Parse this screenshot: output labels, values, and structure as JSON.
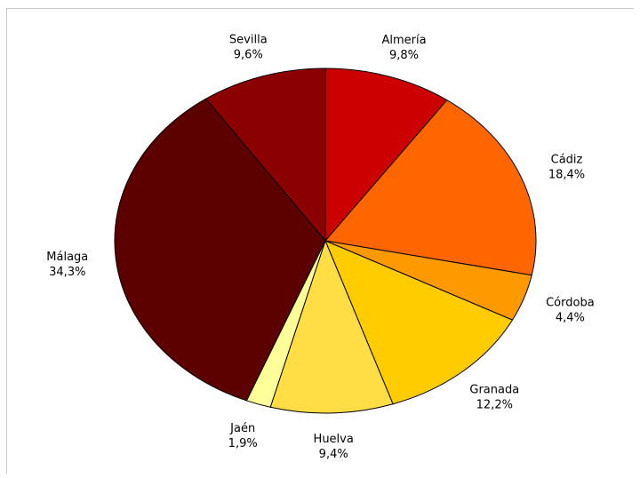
{
  "chart_data": {
    "type": "pie",
    "title": "",
    "slices": [
      {
        "name": "Almería",
        "value": 9.8,
        "label": "9,8%",
        "color": "#cc0000"
      },
      {
        "name": "Cádiz",
        "value": 18.4,
        "label": "18,4%",
        "color": "#ff6600"
      },
      {
        "name": "Córdoba",
        "value": 4.4,
        "label": "4,4%",
        "color": "#ff9900"
      },
      {
        "name": "Granada",
        "value": 12.2,
        "label": "12,2%",
        "color": "#ffcc00"
      },
      {
        "name": "Huelva",
        "value": 9.4,
        "label": "9,4%",
        "color": "#ffdd44"
      },
      {
        "name": "Jaén",
        "value": 1.9,
        "label": "1,9%",
        "color": "#ffff99"
      },
      {
        "name": "Málaga",
        "value": 34.3,
        "label": "34,3%",
        "color": "#5c0000"
      },
      {
        "name": "Sevilla",
        "value": 9.6,
        "label": "9,6%",
        "color": "#8b0000"
      }
    ],
    "start_angle": "top",
    "direction": "clockwise",
    "legend": "none"
  }
}
